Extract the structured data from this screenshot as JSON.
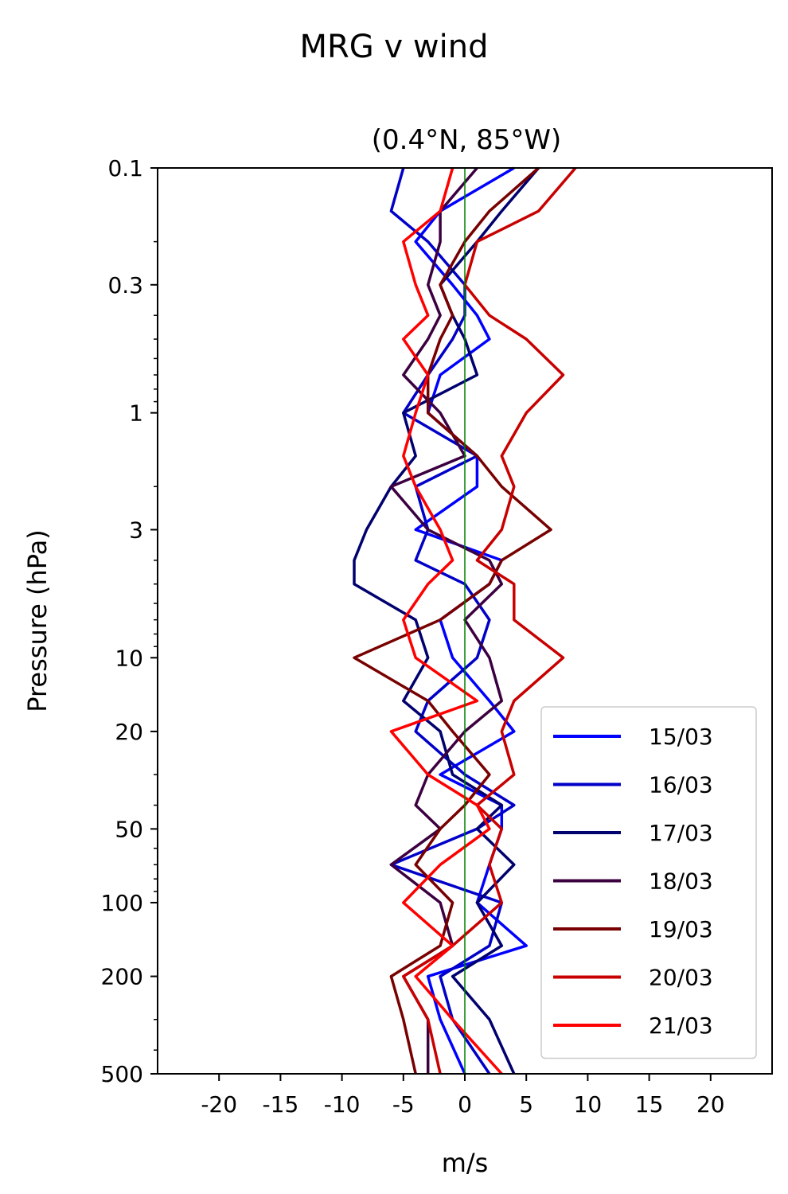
{
  "chart_data": {
    "type": "line",
    "title": "MRG v wind",
    "subtitle": "(0.4°N, 85°W)",
    "xlabel": "m/s",
    "ylabel": "Pressure (hPa)",
    "xlim": [
      -25,
      25
    ],
    "ylim": [
      500,
      0.1
    ],
    "yscale": "log",
    "legend_position": "lower-right",
    "grid": false,
    "x_ticks": [
      -20,
      -15,
      -10,
      -5,
      0,
      5,
      10,
      15,
      20
    ],
    "x_tick_labels": [
      "-20",
      "-15",
      "-10",
      "-5",
      "0",
      "5",
      "10",
      "15",
      "20"
    ],
    "y_ticks": [
      0.1,
      0.3,
      1,
      3,
      10,
      20,
      50,
      100,
      200,
      500
    ],
    "y_tick_labels": [
      "0.1",
      "0.3",
      "1",
      "3",
      "10",
      "20",
      "50",
      "100",
      "200",
      "500"
    ],
    "pressure_levels": [
      0.1,
      0.15,
      0.2,
      0.3,
      0.4,
      0.5,
      0.7,
      1,
      1.5,
      2,
      3,
      4,
      5,
      7,
      10,
      15,
      20,
      30,
      40,
      50,
      70,
      100,
      150,
      200,
      300,
      500
    ],
    "reference_line": {
      "x": 0,
      "color": "#008000"
    },
    "series": [
      {
        "name": "15/03",
        "color": "#0000ff",
        "values": [
          4,
          -2,
          -4,
          -1,
          1,
          2,
          -2,
          -3,
          1,
          1,
          -4,
          3,
          2,
          -2,
          -1,
          2,
          4,
          -2,
          3,
          3,
          2,
          1,
          5,
          -3,
          -2,
          0
        ]
      },
      {
        "name": "16/03",
        "color": "#0000c8",
        "values": [
          -5,
          -6,
          -3,
          0,
          0,
          -1,
          -3,
          -5,
          1,
          -4,
          -3,
          -4,
          0,
          2,
          1,
          -3,
          -4,
          0,
          4,
          1,
          -6,
          3,
          2,
          -2,
          -1,
          2
        ]
      },
      {
        "name": "17/03",
        "color": "#00006e",
        "values": [
          6,
          3,
          1,
          -2,
          -1,
          0,
          1,
          -5,
          -4,
          -6,
          -8,
          -9,
          -9,
          -4,
          -3,
          -5,
          -2,
          -1,
          3,
          1,
          4,
          1,
          3,
          -1,
          2,
          4
        ]
      },
      {
        "name": "18/03",
        "color": "#3c0041",
        "values": [
          1,
          -2,
          -2,
          -3,
          -2,
          -3,
          -5,
          -2,
          0,
          -6,
          -3,
          2,
          3,
          0,
          2,
          3,
          0,
          -3,
          -4,
          -2,
          -6,
          -2,
          -1,
          -5,
          -3,
          -3
        ]
      },
      {
        "name": "19/03",
        "color": "#780000",
        "values": [
          6,
          2,
          0,
          -2,
          -1,
          -2,
          -3,
          -3,
          1,
          3,
          7,
          3,
          2,
          -2,
          -9,
          -3,
          -1,
          2,
          0,
          -2,
          -4,
          -1,
          -2,
          -6,
          -5,
          -4
        ]
      },
      {
        "name": "20/03",
        "color": "#c80000",
        "values": [
          9,
          6,
          1,
          0,
          2,
          5,
          8,
          5,
          3,
          4,
          3,
          1,
          4,
          4,
          8,
          4,
          3,
          4,
          1,
          3,
          2,
          3,
          -1,
          -5,
          -3,
          -2
        ]
      },
      {
        "name": "21/03",
        "color": "#ff0000",
        "values": [
          -1,
          -2,
          -5,
          -4,
          -3,
          -5,
          -3,
          -4,
          -5,
          -4,
          -2,
          -1,
          -3,
          -5,
          -4,
          1,
          -6,
          -3,
          1,
          2,
          -2,
          -5,
          -1,
          -4,
          -1,
          3
        ]
      }
    ]
  }
}
